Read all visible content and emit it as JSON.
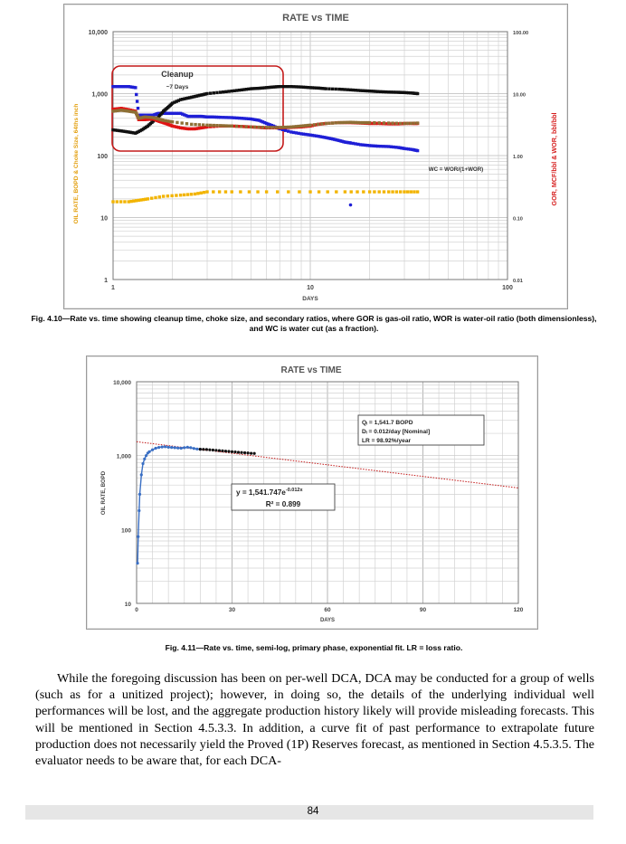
{
  "figure1": {
    "chart_data": {
      "type": "scatter",
      "title": "RATE vs TIME",
      "xlabel": "DAYS",
      "ylabel_left": "OIL RATE, BOPD & Choke Size, 64ths inch",
      "ylabel_right": "GOR, MCF/bbl & WOR, bbl/bbl",
      "x_scale": "log",
      "y_scale": "log",
      "y2_scale": "log",
      "xlim": [
        1,
        100
      ],
      "ylim": [
        1,
        10000
      ],
      "y2lim": [
        0.01,
        100
      ],
      "x_ticks": [
        "1",
        "10",
        "100"
      ],
      "y_ticks": [
        "1",
        "10",
        "100",
        "1,000",
        "10,000"
      ],
      "y2_ticks": [
        "0.01",
        "0.10",
        "1.00",
        "10.00",
        "100.00"
      ],
      "annotations": [
        "Cleanup",
        "~7 Days",
        "WC = WOR/(1+WOR)"
      ],
      "series": [
        {
          "color": "#1f1fd6",
          "points": [
            [
              1.0,
              1300
            ],
            [
              1.1,
              1300
            ],
            [
              1.2,
              1300
            ],
            [
              1.3,
              1250
            ],
            [
              1.35,
              450
            ],
            [
              1.45,
              450
            ],
            [
              1.6,
              450
            ],
            [
              1.7,
              480
            ],
            [
              1.85,
              480
            ],
            [
              2.0,
              480
            ],
            [
              2.2,
              480
            ],
            [
              2.4,
              430
            ],
            [
              2.6,
              430
            ],
            [
              2.8,
              430
            ],
            [
              3.0,
              420
            ],
            [
              3.2,
              420
            ],
            [
              3.5,
              415
            ],
            [
              4.0,
              410
            ],
            [
              4.5,
              400
            ],
            [
              5.0,
              390
            ],
            [
              5.5,
              370
            ],
            [
              6.0,
              330
            ],
            [
              6.5,
              300
            ],
            [
              7.0,
              270
            ],
            [
              8.0,
              240
            ],
            [
              9.0,
              225
            ],
            [
              10.0,
              215
            ],
            [
              11.0,
              205
            ],
            [
              12.0,
              195
            ],
            [
              13.0,
              185
            ],
            [
              14.0,
              175
            ],
            [
              15.0,
              165
            ],
            [
              16.0,
              160
            ],
            [
              18.0,
              150
            ],
            [
              20.0,
              145
            ],
            [
              22.0,
              142
            ],
            [
              25.0,
              140
            ],
            [
              28.0,
              135
            ],
            [
              30.0,
              130
            ],
            [
              33.0,
              125
            ],
            [
              35.0,
              120
            ]
          ]
        },
        {
          "color": "#101010",
          "points": [
            [
              1.0,
              260
            ],
            [
              1.1,
              250
            ],
            [
              1.2,
              240
            ],
            [
              1.3,
              230
            ],
            [
              1.4,
              260
            ],
            [
              1.5,
              300
            ],
            [
              1.6,
              360
            ],
            [
              1.7,
              420
            ],
            [
              1.8,
              520
            ],
            [
              1.9,
              600
            ],
            [
              2.0,
              700
            ],
            [
              2.2,
              800
            ],
            [
              2.4,
              850
            ],
            [
              2.6,
              900
            ],
            [
              2.8,
              950
            ],
            [
              3.0,
              1000
            ],
            [
              3.5,
              1050
            ],
            [
              4.0,
              1100
            ],
            [
              4.5,
              1150
            ],
            [
              5.0,
              1200
            ],
            [
              5.5,
              1220
            ],
            [
              6.0,
              1250
            ],
            [
              6.5,
              1280
            ],
            [
              7.0,
              1300
            ],
            [
              8.0,
              1300
            ],
            [
              9.0,
              1280
            ],
            [
              10.0,
              1250
            ],
            [
              11.0,
              1230
            ],
            [
              12.0,
              1200
            ],
            [
              14.0,
              1180
            ],
            [
              16.0,
              1150
            ],
            [
              18.0,
              1120
            ],
            [
              20.0,
              1100
            ],
            [
              22.0,
              1080
            ],
            [
              25.0,
              1060
            ],
            [
              28.0,
              1050
            ],
            [
              30.0,
              1040
            ],
            [
              33.0,
              1020
            ],
            [
              35.0,
              1000
            ]
          ]
        },
        {
          "color": "#e01515",
          "points": [
            [
              1.0,
              560
            ],
            [
              1.1,
              580
            ],
            [
              1.2,
              550
            ],
            [
              1.3,
              520
            ],
            [
              1.35,
              380
            ],
            [
              1.45,
              380
            ],
            [
              1.6,
              390
            ],
            [
              1.7,
              360
            ],
            [
              1.8,
              340
            ],
            [
              1.9,
              320
            ],
            [
              2.0,
              300
            ],
            [
              2.2,
              280
            ],
            [
              2.4,
              270
            ],
            [
              2.6,
              270
            ],
            [
              2.8,
              280
            ],
            [
              3.0,
              290
            ],
            [
              3.5,
              300
            ],
            [
              4.0,
              300
            ],
            [
              4.5,
              295
            ],
            [
              5.0,
              290
            ],
            [
              5.5,
              285
            ],
            [
              6.0,
              280
            ],
            [
              7.0,
              280
            ],
            [
              8.0,
              285
            ],
            [
              9.0,
              290
            ],
            [
              10.0,
              300
            ],
            [
              11.0,
              320
            ],
            [
              12.0,
              330
            ],
            [
              14.0,
              340
            ],
            [
              16.0,
              340
            ],
            [
              18.0,
              335
            ],
            [
              20.0,
              330
            ],
            [
              22.0,
              330
            ],
            [
              25.0,
              325
            ],
            [
              28.0,
              325
            ],
            [
              30.0,
              330
            ],
            [
              33.0,
              330
            ],
            [
              35.0,
              330
            ]
          ]
        },
        {
          "color": "#8e6f35",
          "points": [
            [
              1.0,
              520
            ],
            [
              1.1,
              540
            ],
            [
              1.2,
              520
            ],
            [
              1.3,
              500
            ],
            [
              1.35,
              400
            ],
            [
              1.45,
              420
            ],
            [
              1.6,
              410
            ],
            [
              1.7,
              390
            ],
            [
              1.8,
              370
            ],
            [
              2.0,
              350
            ],
            [
              2.5,
              320
            ],
            [
              3.0,
              310
            ],
            [
              3.5,
              305
            ],
            [
              4.0,
              300
            ],
            [
              5.0,
              290
            ],
            [
              6.0,
              285
            ],
            [
              7.0,
              285
            ],
            [
              8.0,
              290
            ],
            [
              9.0,
              300
            ],
            [
              10.0,
              310
            ],
            [
              12.0,
              330
            ],
            [
              14.0,
              340
            ],
            [
              16.0,
              345
            ],
            [
              18.0,
              340
            ],
            [
              20.0,
              340
            ],
            [
              25.0,
              335
            ],
            [
              30.0,
              330
            ],
            [
              35.0,
              335
            ]
          ]
        },
        {
          "color": "#f2b400",
          "points": [
            [
              1.0,
              18
            ],
            [
              1.2,
              18
            ],
            [
              1.35,
              19
            ],
            [
              1.5,
              20
            ],
            [
              1.8,
              22
            ],
            [
              2.2,
              23
            ],
            [
              2.6,
              24
            ],
            [
              3.0,
              26
            ],
            [
              4.0,
              26
            ],
            [
              6.0,
              26
            ],
            [
              10.0,
              26
            ],
            [
              15.0,
              26
            ],
            [
              20.0,
              26
            ],
            [
              25.0,
              26
            ],
            [
              30.0,
              26
            ],
            [
              35.0,
              26
            ]
          ]
        }
      ],
      "outliers": [
        [
          16,
          160
        ],
        [
          16,
          16
        ]
      ]
    }
  },
  "caption1": "Fig. 4.10—Rate vs. time showing cleanup time, choke size, and secondary ratios, where GOR is gas-oil ratio, WOR is water-oil ratio (both dimensionless), and WC is water cut (as a fraction).",
  "figure2": {
    "chart_data": {
      "type": "scatter",
      "title": "RATE vs TIME",
      "xlabel": "DAYS",
      "ylabel": "OIL RATE, BOPD",
      "x_scale": "linear",
      "y_scale": "log",
      "xlim": [
        0,
        120
      ],
      "ylim": [
        10,
        10000
      ],
      "x_ticks": [
        "0",
        "30",
        "60",
        "90",
        "120"
      ],
      "y_ticks": [
        "10",
        "100",
        "1,000",
        "10,000"
      ],
      "infobox": [
        "Qᵢ = 1,541.7 BOPD",
        "Dᵢ = 0.012/day [Nominal]",
        "LR = 98.92%/year"
      ],
      "equation": "y = 1,541.747e",
      "equation_exp": "-0.012x",
      "r2": "R² = 0.899",
      "fit": {
        "a": 1541.747,
        "b": -0.012
      },
      "series": [
        {
          "color": "#3a6fc4",
          "points": [
            [
              0.3,
              35
            ],
            [
              0.5,
              80
            ],
            [
              0.8,
              180
            ],
            [
              1.0,
              300
            ],
            [
              1.5,
              550
            ],
            [
              2.0,
              780
            ],
            [
              2.5,
              900
            ],
            [
              3.0,
              1000
            ],
            [
              3.5,
              1080
            ],
            [
              4.0,
              1130
            ],
            [
              5.0,
              1200
            ],
            [
              6.0,
              1260
            ],
            [
              7.0,
              1290
            ],
            [
              8.0,
              1310
            ],
            [
              9.0,
              1320
            ],
            [
              10.0,
              1300
            ],
            [
              11.0,
              1290
            ],
            [
              12.0,
              1280
            ],
            [
              13.0,
              1270
            ],
            [
              14.0,
              1260
            ],
            [
              15.0,
              1280
            ],
            [
              16.0,
              1300
            ],
            [
              17.0,
              1280
            ],
            [
              18.0,
              1250
            ],
            [
              19.0,
              1230
            ],
            [
              20.0,
              1220
            ]
          ]
        },
        {
          "color": "#101010",
          "points": [
            [
              20,
              1220
            ],
            [
              21,
              1215
            ],
            [
              22,
              1210
            ],
            [
              23,
              1200
            ],
            [
              24,
              1190
            ],
            [
              25,
              1180
            ],
            [
              26,
              1170
            ],
            [
              27,
              1160
            ],
            [
              28,
              1150
            ],
            [
              29,
              1140
            ],
            [
              30,
              1130
            ],
            [
              31,
              1120
            ],
            [
              32,
              1110
            ],
            [
              33,
              1100
            ],
            [
              34,
              1095
            ],
            [
              35,
              1085
            ],
            [
              36,
              1075
            ],
            [
              37,
              1070
            ]
          ]
        }
      ]
    }
  },
  "caption2": "Fig. 4.11—Rate vs. time, semi-log, primary phase, exponential fit. LR = loss ratio.",
  "body_paragraph": "While the foregoing discussion has been on per-well DCA, DCA may be conducted for a group of wells (such as for a unitized project); however, in doing so, the details of the underlying individual well performances will be lost, and the aggregate production history likely will provide misleading forecasts. This will be mentioned in Section 4.5.3.3. In addition, a curve fit of past performance to extrapolate future production does not necessarily yield the Proved (1P) Reserves forecast, as mentioned in Section 4.5.3.5. The evaluator needs to be aware that, for each DCA-",
  "page_number": "84"
}
